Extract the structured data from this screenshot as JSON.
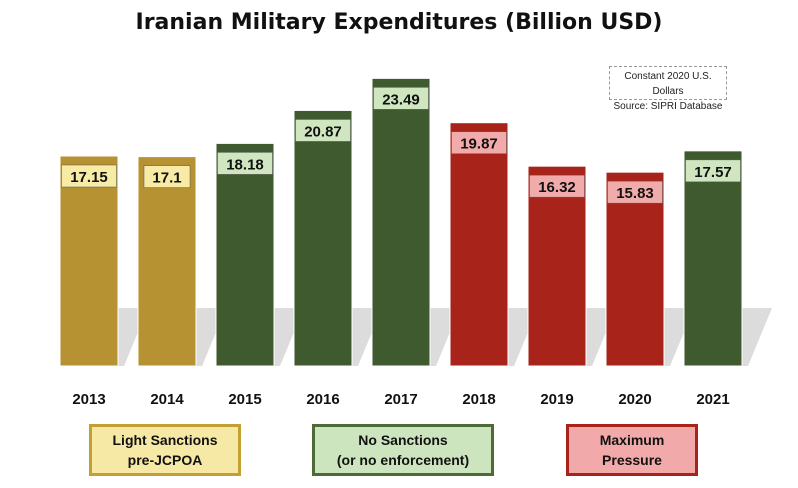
{
  "chart_data": {
    "type": "bar",
    "title": "Iranian Military Expenditures (Billion USD)",
    "categories": [
      "2013",
      "2014",
      "2015",
      "2016",
      "2017",
      "2018",
      "2019",
      "2020",
      "2021"
    ],
    "values": [
      17.15,
      17.1,
      18.18,
      20.87,
      23.49,
      19.87,
      16.32,
      15.83,
      17.57
    ],
    "value_labels": [
      "17.15",
      "17.1",
      "18.18",
      "20.87",
      "23.49",
      "19.87",
      "16.32",
      "15.83",
      "17.57"
    ],
    "bar_groups": [
      "light",
      "light",
      "none",
      "none",
      "none",
      "max",
      "max",
      "max",
      "none"
    ],
    "ylim": [
      0,
      24.5
    ],
    "grid": false,
    "legend_position": "bottom",
    "note_lines": [
      "Constant 2020 U.S. Dollars",
      "Source: SIPRI Database"
    ]
  },
  "groups": {
    "light": {
      "lines": [
        "Light Sanctions",
        "pre-JCPOA"
      ],
      "bar_color": "#B79232",
      "label_fill": "#F8EBA6",
      "box_fill": "#F6E9A5",
      "box_border": "#C4A033"
    },
    "none": {
      "lines": [
        "No Sanctions",
        "(or no enforcement)"
      ],
      "bar_color": "#3E5A2E",
      "label_fill": "#CFE6C1",
      "box_fill": "#CDE5BF",
      "box_border": "#4E6B35"
    },
    "max": {
      "lines": [
        "Maximum",
        "Pressure"
      ],
      "bar_color": "#A8241A",
      "label_fill": "#F2ABAB",
      "box_fill": "#F2A9A9",
      "box_border": "#A8241A"
    }
  },
  "legend_order": [
    "light",
    "none",
    "max"
  ]
}
